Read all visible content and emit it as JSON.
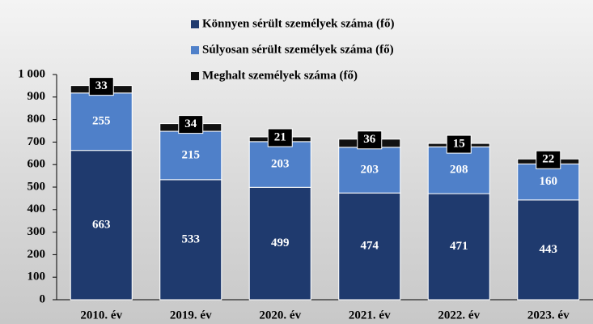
{
  "chart_data": {
    "type": "stacked-bar",
    "categories": [
      "2010. év",
      "2019. év",
      "2020. év",
      "2021. év",
      "2022. év",
      "2023. év"
    ],
    "series": [
      {
        "name": "Könnyen sérült személyek száma (fő)",
        "color": "#1f3a6e",
        "values": [
          663,
          533,
          499,
          474,
          471,
          443
        ]
      },
      {
        "name": "Súlyosan sérült személyek száma (fő)",
        "color": "#4f80c9",
        "values": [
          255,
          215,
          203,
          203,
          208,
          160
        ]
      },
      {
        "name": "Meghalt személyek száma (fő)",
        "color": "#111111",
        "values": [
          33,
          34,
          21,
          36,
          15,
          22
        ]
      }
    ],
    "ylim": [
      0,
      1000
    ],
    "yticks": [
      0,
      100,
      200,
      300,
      400,
      500,
      600,
      700,
      800,
      900,
      {
        "value": 1000,
        "label": "1 000"
      }
    ]
  }
}
